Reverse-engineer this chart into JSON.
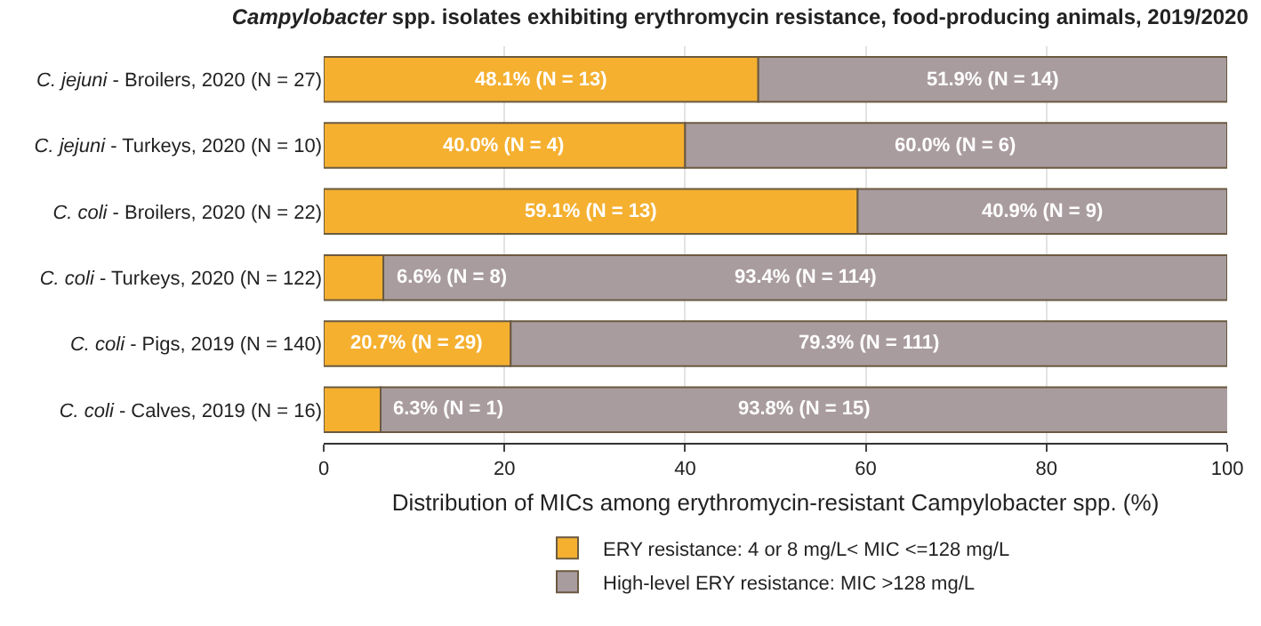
{
  "chart_data": {
    "type": "bar",
    "orientation": "horizontal",
    "stacked": true,
    "title": "Campylobacter spp. isolates exhibiting erythromycin resistance, food-producing animals, 2019/2020",
    "xlabel": "Distribution of MICs among erythromycin-resistant Campylobacter spp. (%)",
    "categories": [
      "C. jejuni - Broilers, 2020 (N = 27)",
      "C. jejuni - Turkeys, 2020 (N = 10)",
      "C. coli - Broilers, 2020 (N = 22)",
      "C. coli - Turkeys, 2020 (N = 122)",
      "C. coli - Pigs, 2019 (N = 140)",
      "C. coli - Calves, 2019 (N = 16)"
    ],
    "series": [
      {
        "name": "ERY resistance: 4 or 8 mg/L< MIC <=128 mg/L",
        "color": "#f5b030",
        "values": [
          48.1,
          40.0,
          59.1,
          6.6,
          20.7,
          6.3
        ],
        "value_labels": [
          "48.1% (N = 13)",
          "40.0% (N = 4)",
          "59.1% (N = 13)",
          "6.6% (N = 8)",
          "20.7% (N = 29)",
          "6.3% (N = 1)"
        ]
      },
      {
        "name": "High-level ERY resistance: MIC >128 mg/L",
        "color": "#a99c9f",
        "values": [
          51.9,
          60.0,
          40.9,
          93.4,
          79.3,
          93.8
        ],
        "value_labels": [
          "51.9% (N = 14)",
          "60.0% (N = 6)",
          "40.9% (N = 9)",
          "93.4% (N = 114)",
          "79.3% (N = 111)",
          "93.8% (N = 15)"
        ]
      }
    ],
    "xlim": [
      0,
      100
    ],
    "xticks": [
      0,
      20,
      40,
      60,
      80,
      100
    ],
    "grid": "x",
    "legend": "bottom"
  }
}
